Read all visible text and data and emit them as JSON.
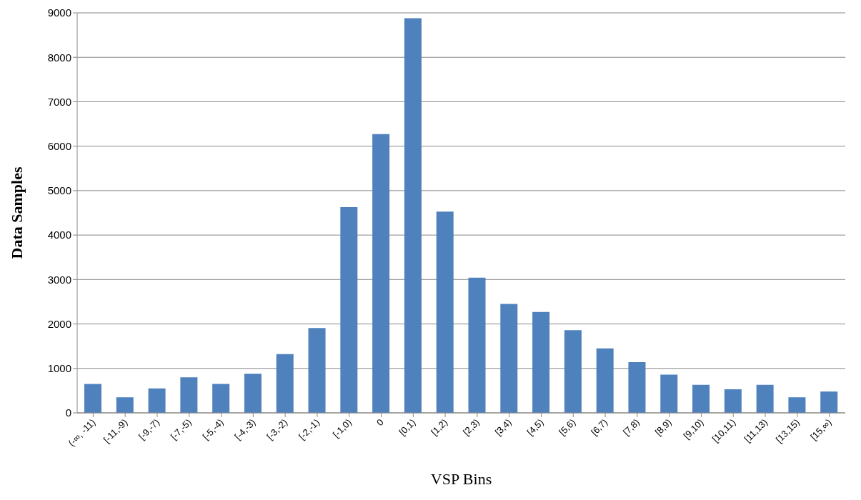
{
  "chart_data": {
    "type": "bar",
    "xlabel": "VSP Bins",
    "ylabel": "Data Samples",
    "categories": [
      "(-∞, -11)",
      "[-11,-9)",
      "[-9,-7)",
      "[-7,-5)",
      "[-5,-4)",
      "[-4,-3)",
      "[-3,-2)",
      "[-2,-1)",
      "[-1,0)",
      "0",
      "[0,1)",
      "[1,2)",
      "[2,3)",
      "[3,4)",
      "[4,5)",
      "[5,6)",
      "[6,7)",
      "[7,8)",
      "[8,9)",
      "[9,10)",
      "[10,11)",
      "[11,13)",
      "[13,15)",
      "[15,∞)"
    ],
    "values": [
      650,
      350,
      550,
      800,
      650,
      880,
      1320,
      1910,
      4630,
      6270,
      8880,
      4530,
      3040,
      2450,
      2270,
      1860,
      1450,
      1140,
      860,
      630,
      530,
      630,
      350,
      480
    ],
    "color": "#4f81bd",
    "ylim": [
      0,
      9000
    ],
    "yticks": [
      0,
      1000,
      2000,
      3000,
      4000,
      5000,
      6000,
      7000,
      8000,
      9000
    ],
    "grid": "y",
    "legend": false
  }
}
